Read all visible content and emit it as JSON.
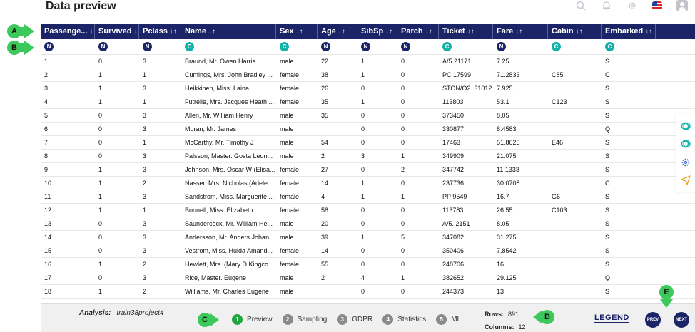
{
  "title": "Data preview",
  "top_icons": [
    "search-icon",
    "bell-icon",
    "gear-icon",
    "flag-icon",
    "user-icon"
  ],
  "columns": [
    {
      "label": "Passenge...",
      "sort": "↓↑",
      "type": "N"
    },
    {
      "label": "Survived",
      "sort": "↓↑",
      "type": "N"
    },
    {
      "label": "Pclass",
      "sort": "↓↑",
      "type": "N"
    },
    {
      "label": "Name",
      "sort": "↓↑",
      "type": "C"
    },
    {
      "label": "Sex",
      "sort": "↓↑",
      "type": "C"
    },
    {
      "label": "Age",
      "sort": "↓↑",
      "type": "N"
    },
    {
      "label": "SibSp",
      "sort": "↓↑",
      "type": "N"
    },
    {
      "label": "Parch",
      "sort": "↓↑",
      "type": "N"
    },
    {
      "label": "Ticket",
      "sort": "↓↑",
      "type": "C"
    },
    {
      "label": "Fare",
      "sort": "↓↑",
      "type": "N"
    },
    {
      "label": "Cabin",
      "sort": "↓↑",
      "type": "C"
    },
    {
      "label": "Embarked",
      "sort": "↓↑",
      "type": "C"
    }
  ],
  "rows": [
    [
      "1",
      "0",
      "3",
      "Braund, Mr. Owen Harris",
      "male",
      "22",
      "1",
      "0",
      "A/5 21171",
      "7.25",
      "",
      "S"
    ],
    [
      "2",
      "1",
      "1",
      "Cumings, Mrs. John Bradley ...",
      "female",
      "38",
      "1",
      "0",
      "PC 17599",
      "71.2833",
      "C85",
      "C"
    ],
    [
      "3",
      "1",
      "3",
      "Heikkinen, Miss. Laina",
      "female",
      "26",
      "0",
      "0",
      "STON/O2. 31012...",
      "7.925",
      "",
      "S"
    ],
    [
      "4",
      "1",
      "1",
      "Futrelle, Mrs. Jacques Heath ...",
      "female",
      "35",
      "1",
      "0",
      "113803",
      "53.1",
      "C123",
      "S"
    ],
    [
      "5",
      "0",
      "3",
      "Allen, Mr. William Henry",
      "male",
      "35",
      "0",
      "0",
      "373450",
      "8.05",
      "",
      "S"
    ],
    [
      "6",
      "0",
      "3",
      "Moran, Mr. James",
      "male",
      "",
      "0",
      "0",
      "330877",
      "8.4583",
      "",
      "Q"
    ],
    [
      "7",
      "0",
      "1",
      "McCarthy, Mr. Timothy J",
      "male",
      "54",
      "0",
      "0",
      "17463",
      "51.8625",
      "E46",
      "S"
    ],
    [
      "8",
      "0",
      "3",
      "Palsson, Master. Gosta Leon...",
      "male",
      "2",
      "3",
      "1",
      "349909",
      "21.075",
      "",
      "S"
    ],
    [
      "9",
      "1",
      "3",
      "Johnson, Mrs. Oscar W (Elisa...",
      "female",
      "27",
      "0",
      "2",
      "347742",
      "11.1333",
      "",
      "S"
    ],
    [
      "10",
      "1",
      "2",
      "Nasser, Mrs. Nicholas (Adele ...",
      "female",
      "14",
      "1",
      "0",
      "237736",
      "30.0708",
      "",
      "C"
    ],
    [
      "11",
      "1",
      "3",
      "Sandstrom, Miss. Marguerite ...",
      "female",
      "4",
      "1",
      "1",
      "PP 9549",
      "16.7",
      "G6",
      "S"
    ],
    [
      "12",
      "1",
      "1",
      "Bonnell, Miss. Elizabeth",
      "female",
      "58",
      "0",
      "0",
      "113783",
      "26.55",
      "C103",
      "S"
    ],
    [
      "13",
      "0",
      "3",
      "Saundercock, Mr. William He...",
      "male",
      "20",
      "0",
      "0",
      "A/5. 2151",
      "8.05",
      "",
      "S"
    ],
    [
      "14",
      "0",
      "3",
      "Andersson, Mr. Anders Johan",
      "male",
      "39",
      "1",
      "5",
      "347082",
      "31.275",
      "",
      "S"
    ],
    [
      "15",
      "0",
      "3",
      "Vestrom, Miss. Hulda Amand...",
      "female",
      "14",
      "0",
      "0",
      "350406",
      "7.8542",
      "",
      "S"
    ],
    [
      "16",
      "1",
      "2",
      "Hewlett, Mrs. (Mary D Kingco...",
      "female",
      "55",
      "0",
      "0",
      "248706",
      "16",
      "",
      "S"
    ],
    [
      "17",
      "0",
      "3",
      "Rice, Master. Eugene",
      "male",
      "2",
      "4",
      "1",
      "382652",
      "29.125",
      "",
      "Q"
    ],
    [
      "18",
      "1",
      "2",
      "Williams, Mr. Charles Eugene",
      "male",
      "",
      "0",
      "0",
      "244373",
      "13",
      "",
      "S"
    ]
  ],
  "side_tools": [
    "layers-icon",
    "layers-alt-icon",
    "settings-icon",
    "send-icon"
  ],
  "bottom": {
    "analysis_label": "Analysis:",
    "analysis_name": "train38project4",
    "steps": [
      {
        "num": "1",
        "label": "Preview",
        "active": true
      },
      {
        "num": "2",
        "label": "Sampling",
        "active": false
      },
      {
        "num": "3",
        "label": "GDPR",
        "active": false
      },
      {
        "num": "4",
        "label": "Statistics",
        "active": false
      },
      {
        "num": "5",
        "label": "ML",
        "active": false
      }
    ],
    "rows_label": "Rows:",
    "rows_value": "891",
    "cols_label": "Columns:",
    "cols_value": "12",
    "legend": "LEGEND",
    "prev": "PREV",
    "next": "NEXT"
  },
  "markers": {
    "a": "A",
    "b": "B",
    "c": "C",
    "d": "D",
    "e": "E"
  },
  "colors": {
    "header_bg": "#1b2466",
    "accent_green": "#3cc85a",
    "type_c": "#12b1a8"
  }
}
